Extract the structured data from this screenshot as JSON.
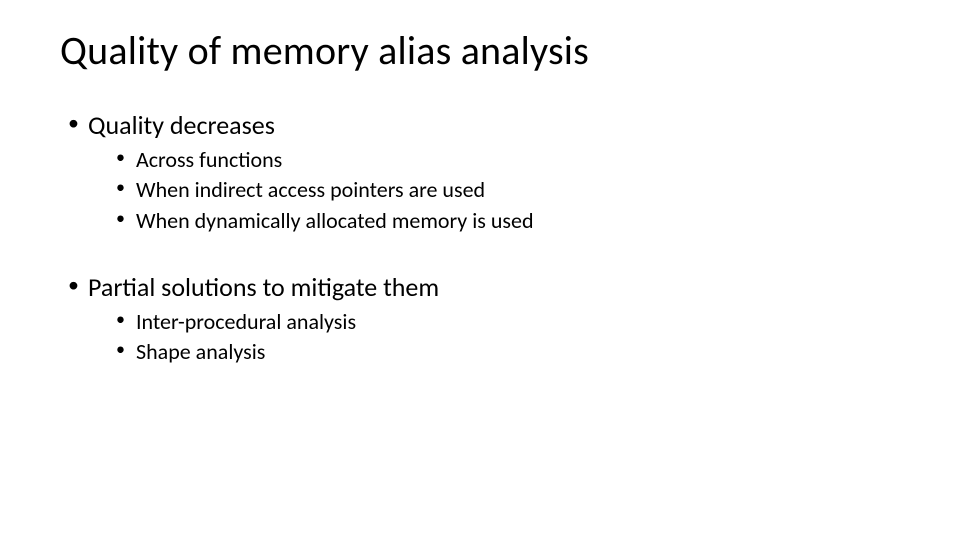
{
  "slide": {
    "title": "Quality of memory alias analysis",
    "title_fontsize": 40,
    "bullets": [
      {
        "text": "Quality decreases",
        "fontsize": 26,
        "sub": [
          {
            "text": "Across functions",
            "fontsize": 22
          },
          {
            "text": "When indirect access pointers are used",
            "fontsize": 22
          },
          {
            "text": "When dynamically allocated memory is used",
            "fontsize": 22
          }
        ]
      },
      {
        "text": "Partial solutions to mitigate them",
        "fontsize": 26,
        "sub": [
          {
            "text": "Inter-procedural analysis",
            "fontsize": 22
          },
          {
            "text": "Shape analysis",
            "fontsize": 22
          }
        ]
      }
    ],
    "colors": {
      "background": "#ffffff",
      "text": "#000000"
    },
    "font_family": "Calibri"
  }
}
